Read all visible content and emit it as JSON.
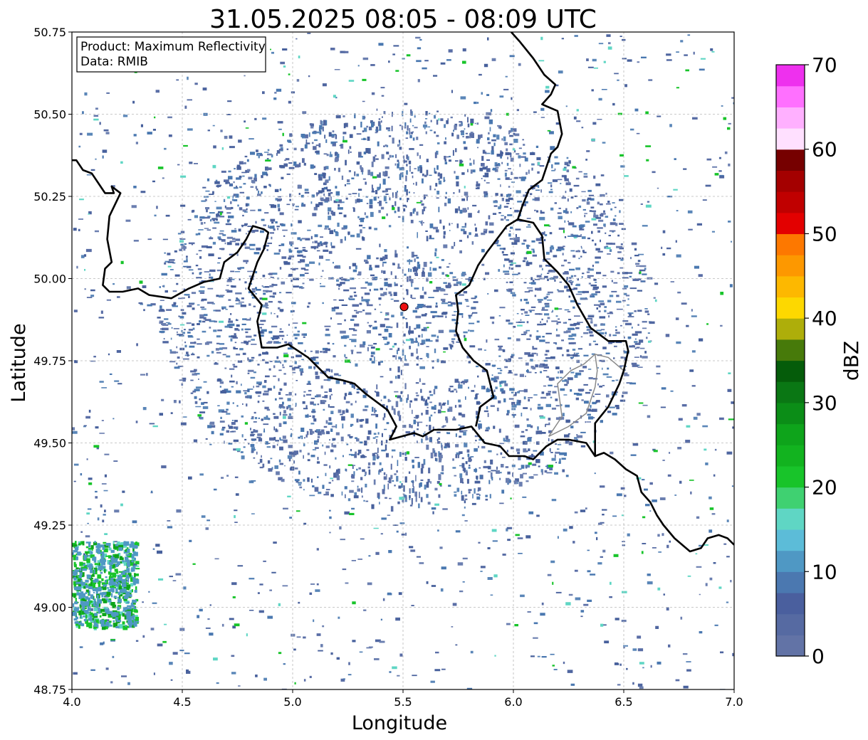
{
  "title": "31.05.2025 08:05 - 08:09 UTC",
  "xlabel": "Longitude",
  "ylabel": "Latitude",
  "x_ticks": [
    "4.0",
    "4.5",
    "5.0",
    "5.5",
    "6.0",
    "6.5",
    "7.0"
  ],
  "y_ticks": [
    "50.75",
    "50.50",
    "50.25",
    "50.00",
    "49.75",
    "49.50",
    "49.25",
    "49.00",
    "48.75"
  ],
  "info_box": {
    "product": "Product: Maximum Reflectivity",
    "data": "Data: RMIB"
  },
  "colorbar": {
    "label": "dBZ",
    "ticks": [
      "0",
      "10",
      "20",
      "30",
      "40",
      "50",
      "60",
      "70"
    ],
    "colors": [
      "#6273a6",
      "#566aa2",
      "#4a5f9e",
      "#4b78b0",
      "#4f98c4",
      "#5cbcd8",
      "#5fd6c4",
      "#3fd171",
      "#18c42a",
      "#12b31f",
      "#0ea41b",
      "#0b8d17",
      "#0a7714",
      "#055c0a",
      "#477a0a",
      "#aeae0a",
      "#fdd800",
      "#fdb800",
      "#fd9800",
      "#fd7800",
      "#e30000",
      "#c00000",
      "#a40000",
      "#760000",
      "#ffe0ff",
      "#ffb0ff",
      "#ff70ff",
      "#ee30ee"
    ]
  },
  "map": {
    "lon_range": [
      4.0,
      7.0
    ],
    "lat_range": [
      48.75,
      50.75
    ],
    "radar_site": {
      "lon": 5.505,
      "lat": 49.914
    },
    "borders": [
      [
        [
          4.0,
          50.36
        ],
        [
          4.02,
          50.36
        ],
        [
          4.05,
          50.33
        ],
        [
          4.09,
          50.32
        ],
        [
          4.13,
          50.28
        ],
        [
          4.15,
          50.26
        ],
        [
          4.19,
          50.26
        ],
        [
          4.18,
          50.28
        ],
        [
          4.22,
          50.26
        ],
        [
          4.17,
          50.19
        ],
        [
          4.16,
          50.12
        ],
        [
          4.18,
          50.05
        ],
        [
          4.15,
          50.03
        ],
        [
          4.14,
          49.98
        ],
        [
          4.17,
          49.96
        ],
        [
          4.23,
          49.96
        ],
        [
          4.3,
          49.97
        ],
        [
          4.35,
          49.95
        ],
        [
          4.45,
          49.94
        ],
        [
          4.53,
          49.97
        ],
        [
          4.6,
          49.99
        ],
        [
          4.67,
          50.0
        ],
        [
          4.69,
          50.05
        ],
        [
          4.75,
          50.08
        ],
        [
          4.79,
          50.12
        ],
        [
          4.82,
          50.16
        ],
        [
          4.87,
          50.15
        ],
        [
          4.89,
          50.14
        ],
        [
          4.87,
          50.09
        ],
        [
          4.84,
          50.05
        ],
        [
          4.8,
          49.97
        ],
        [
          4.86,
          49.92
        ],
        [
          4.84,
          49.87
        ],
        [
          4.86,
          49.79
        ],
        [
          4.93,
          49.79
        ],
        [
          4.98,
          49.8
        ],
        [
          5.07,
          49.76
        ],
        [
          5.16,
          49.7
        ],
        [
          5.23,
          49.69
        ],
        [
          5.28,
          49.68
        ],
        [
          5.33,
          49.65
        ],
        [
          5.43,
          49.6
        ],
        [
          5.47,
          49.55
        ],
        [
          5.44,
          49.51
        ],
        [
          5.55,
          49.53
        ],
        [
          5.59,
          49.52
        ],
        [
          5.64,
          49.54
        ],
        [
          5.74,
          49.54
        ],
        [
          5.81,
          49.55
        ],
        [
          5.87,
          49.5
        ],
        [
          5.94,
          49.49
        ],
        [
          5.98,
          49.46
        ],
        [
          6.05,
          49.46
        ],
        [
          6.09,
          49.45
        ],
        [
          6.15,
          49.49
        ],
        [
          6.2,
          49.51
        ],
        [
          6.25,
          49.51
        ],
        [
          6.33,
          49.5
        ],
        [
          6.37,
          49.46
        ],
        [
          6.41,
          49.47
        ],
        [
          6.46,
          49.45
        ],
        [
          6.51,
          49.42
        ],
        [
          6.56,
          49.4
        ],
        [
          6.58,
          49.35
        ],
        [
          6.62,
          49.32
        ],
        [
          6.65,
          49.28
        ],
        [
          6.68,
          49.25
        ],
        [
          6.73,
          49.21
        ],
        [
          6.8,
          49.17
        ],
        [
          6.85,
          49.18
        ],
        [
          6.88,
          49.21
        ],
        [
          6.93,
          49.22
        ],
        [
          6.97,
          49.21
        ],
        [
          7.0,
          49.19
        ]
      ],
      [
        [
          5.83,
          49.55
        ],
        [
          5.85,
          49.61
        ],
        [
          5.91,
          49.64
        ],
        [
          5.88,
          49.72
        ],
        [
          5.82,
          49.75
        ],
        [
          5.77,
          49.79
        ],
        [
          5.74,
          49.84
        ],
        [
          5.75,
          49.9
        ],
        [
          5.74,
          49.95
        ],
        [
          5.8,
          49.98
        ],
        [
          5.84,
          50.04
        ],
        [
          5.88,
          50.08
        ],
        [
          5.97,
          50.16
        ],
        [
          6.02,
          50.18
        ],
        [
          6.09,
          50.17
        ],
        [
          6.13,
          50.13
        ],
        [
          6.14,
          50.06
        ],
        [
          6.2,
          50.02
        ],
        [
          6.25,
          49.98
        ],
        [
          6.29,
          49.92
        ],
        [
          6.35,
          49.85
        ],
        [
          6.43,
          49.81
        ],
        [
          6.51,
          49.81
        ],
        [
          6.52,
          49.78
        ],
        [
          6.5,
          49.72
        ],
        [
          6.48,
          49.68
        ],
        [
          6.43,
          49.61
        ],
        [
          6.37,
          49.56
        ],
        [
          6.37,
          49.46
        ]
      ],
      [
        [
          6.02,
          50.18
        ],
        [
          6.04,
          50.22
        ],
        [
          6.07,
          50.27
        ],
        [
          6.13,
          50.3
        ],
        [
          6.17,
          50.38
        ],
        [
          6.2,
          50.4
        ],
        [
          6.22,
          50.44
        ],
        [
          6.2,
          50.51
        ],
        [
          6.13,
          50.53
        ],
        [
          6.17,
          50.56
        ],
        [
          6.19,
          50.59
        ],
        [
          6.14,
          50.62
        ],
        [
          6.09,
          50.67
        ],
        [
          6.03,
          50.72
        ],
        [
          5.99,
          50.75
        ]
      ]
    ],
    "secondary_borders": [
      [
        [
          6.16,
          49.52
        ],
        [
          6.22,
          49.58
        ],
        [
          6.2,
          49.68
        ],
        [
          6.26,
          49.72
        ],
        [
          6.32,
          49.74
        ],
        [
          6.37,
          49.77
        ],
        [
          6.43,
          49.76
        ],
        [
          6.5,
          49.72
        ]
      ],
      [
        [
          6.16,
          49.52
        ],
        [
          6.25,
          49.55
        ],
        [
          6.33,
          49.59
        ],
        [
          6.37,
          49.67
        ],
        [
          6.38,
          49.72
        ],
        [
          6.37,
          49.77
        ]
      ]
    ]
  }
}
